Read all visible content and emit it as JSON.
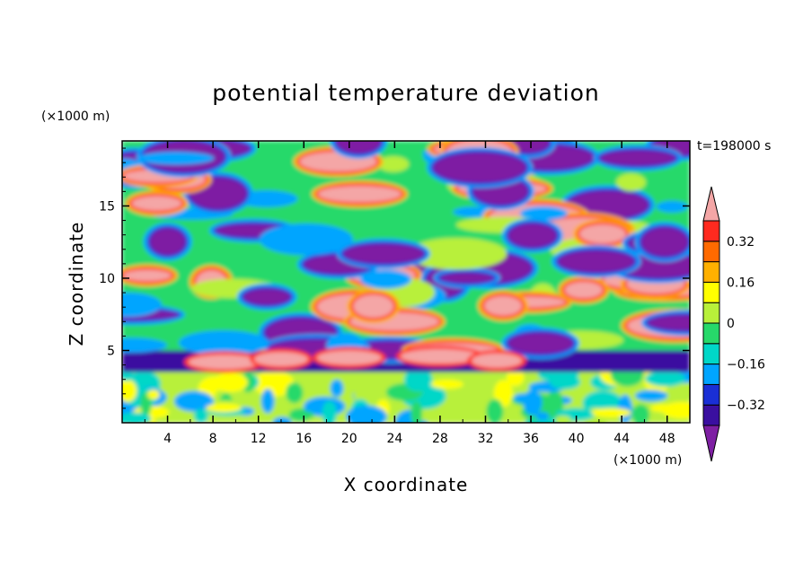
{
  "chart_data": {
    "type": "heatmap",
    "title": "potential temperature deviation",
    "xlabel": "X coordinate",
    "ylabel": "Z coordinate",
    "x_unit": "(×1000 m)",
    "y_unit": "(×1000 m)",
    "time_label": "t=198000 s",
    "xlim": [
      0,
      50
    ],
    "ylim": [
      0,
      19.5
    ],
    "x_ticks": [
      4,
      8,
      12,
      16,
      20,
      24,
      28,
      32,
      36,
      40,
      44,
      48
    ],
    "y_ticks": [
      5,
      10,
      15
    ],
    "colorbar": {
      "levels": [
        -0.4,
        -0.32,
        -0.24,
        -0.16,
        -0.08,
        0,
        0.08,
        0.16,
        0.24,
        0.32,
        0.4
      ],
      "colors": [
        "#7e1fa3",
        "#3a0fa0",
        "#1a2fd6",
        "#00a5ff",
        "#00d7c8",
        "#27d96a",
        "#b8f03a",
        "#ffff00",
        "#ffb000",
        "#ff6a00",
        "#ff2a1f",
        "#f4a6a6"
      ],
      "labels": [
        {
          "text": "0.32",
          "value": 0.32
        },
        {
          "text": "0.16",
          "value": 0.16
        },
        {
          "text": "0",
          "value": 0
        },
        {
          "text": "−0.16",
          "value": -0.16
        },
        {
          "text": "−0.32",
          "value": -0.32
        }
      ],
      "extend": "both"
    },
    "regions": [
      {
        "name": "lower layer",
        "z_range": [
          0,
          3.5
        ],
        "dominant": "green / cyan / yellow"
      },
      {
        "name": "transition band",
        "z_range": [
          3.5,
          5
        ],
        "dominant": "purple with pink patches"
      },
      {
        "name": "upper layer",
        "z_range": [
          5,
          19.5
        ],
        "dominant": "alternating purple and pink blobs with full color spectrum between"
      }
    ]
  }
}
